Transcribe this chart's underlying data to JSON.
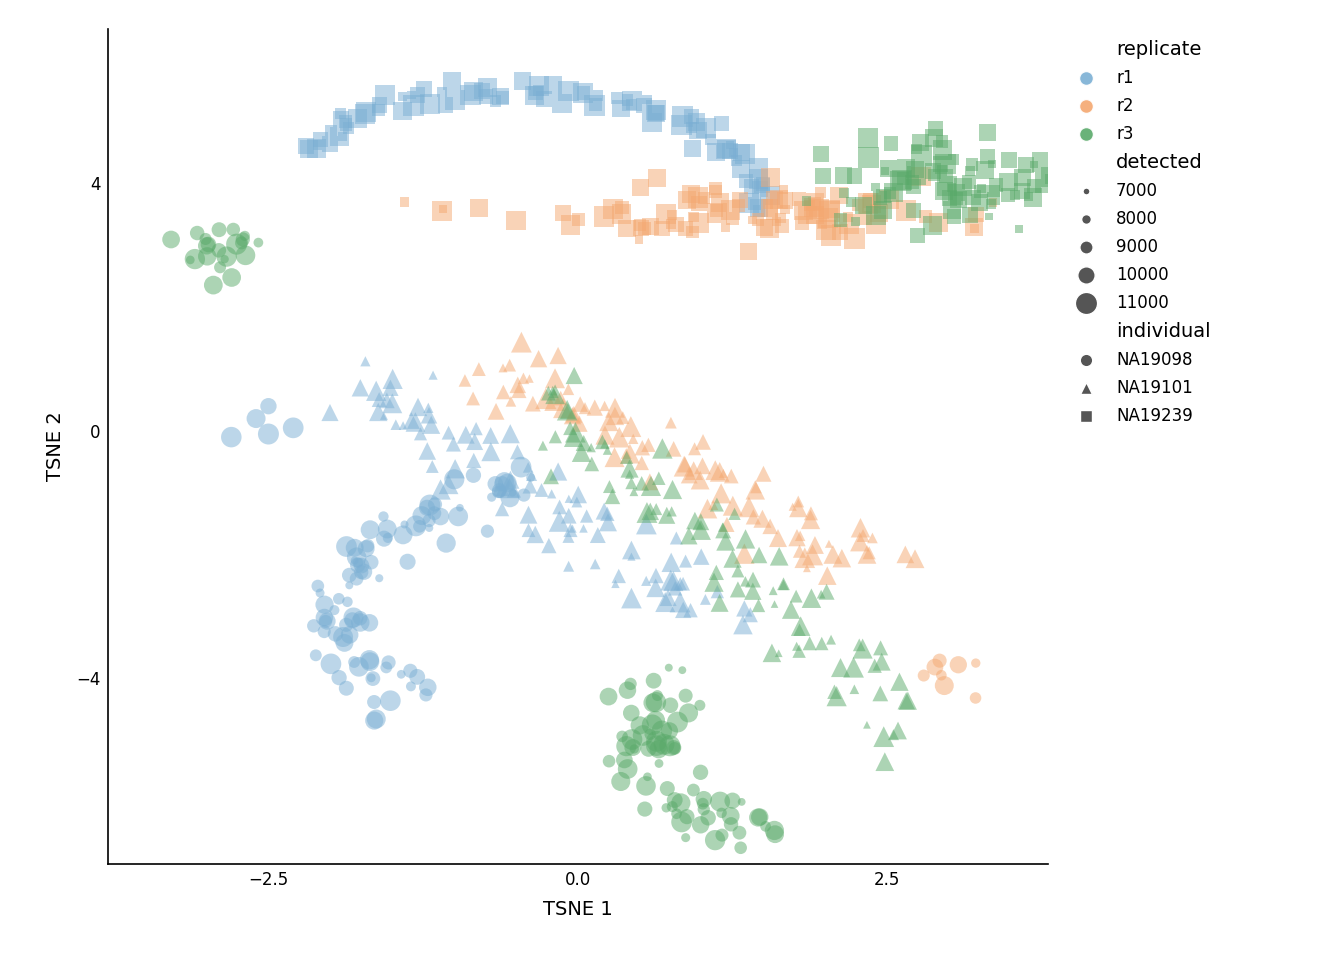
{
  "xlabel": "TSNE 1",
  "ylabel": "TSNE 2",
  "xlim": [
    -3.8,
    3.8
  ],
  "ylim": [
    -7.0,
    6.5
  ],
  "xticks": [
    -2.5,
    0.0,
    2.5
  ],
  "yticks": [
    -4,
    0,
    4
  ],
  "colors": {
    "r1": "#7bafd4",
    "r2": "#f4a870",
    "r3": "#5aaa6a"
  },
  "alpha": 0.5,
  "background_color": "#ffffff",
  "legend_detected_sizes": [
    7000,
    8000,
    9000,
    10000,
    11000
  ],
  "seed": 42
}
